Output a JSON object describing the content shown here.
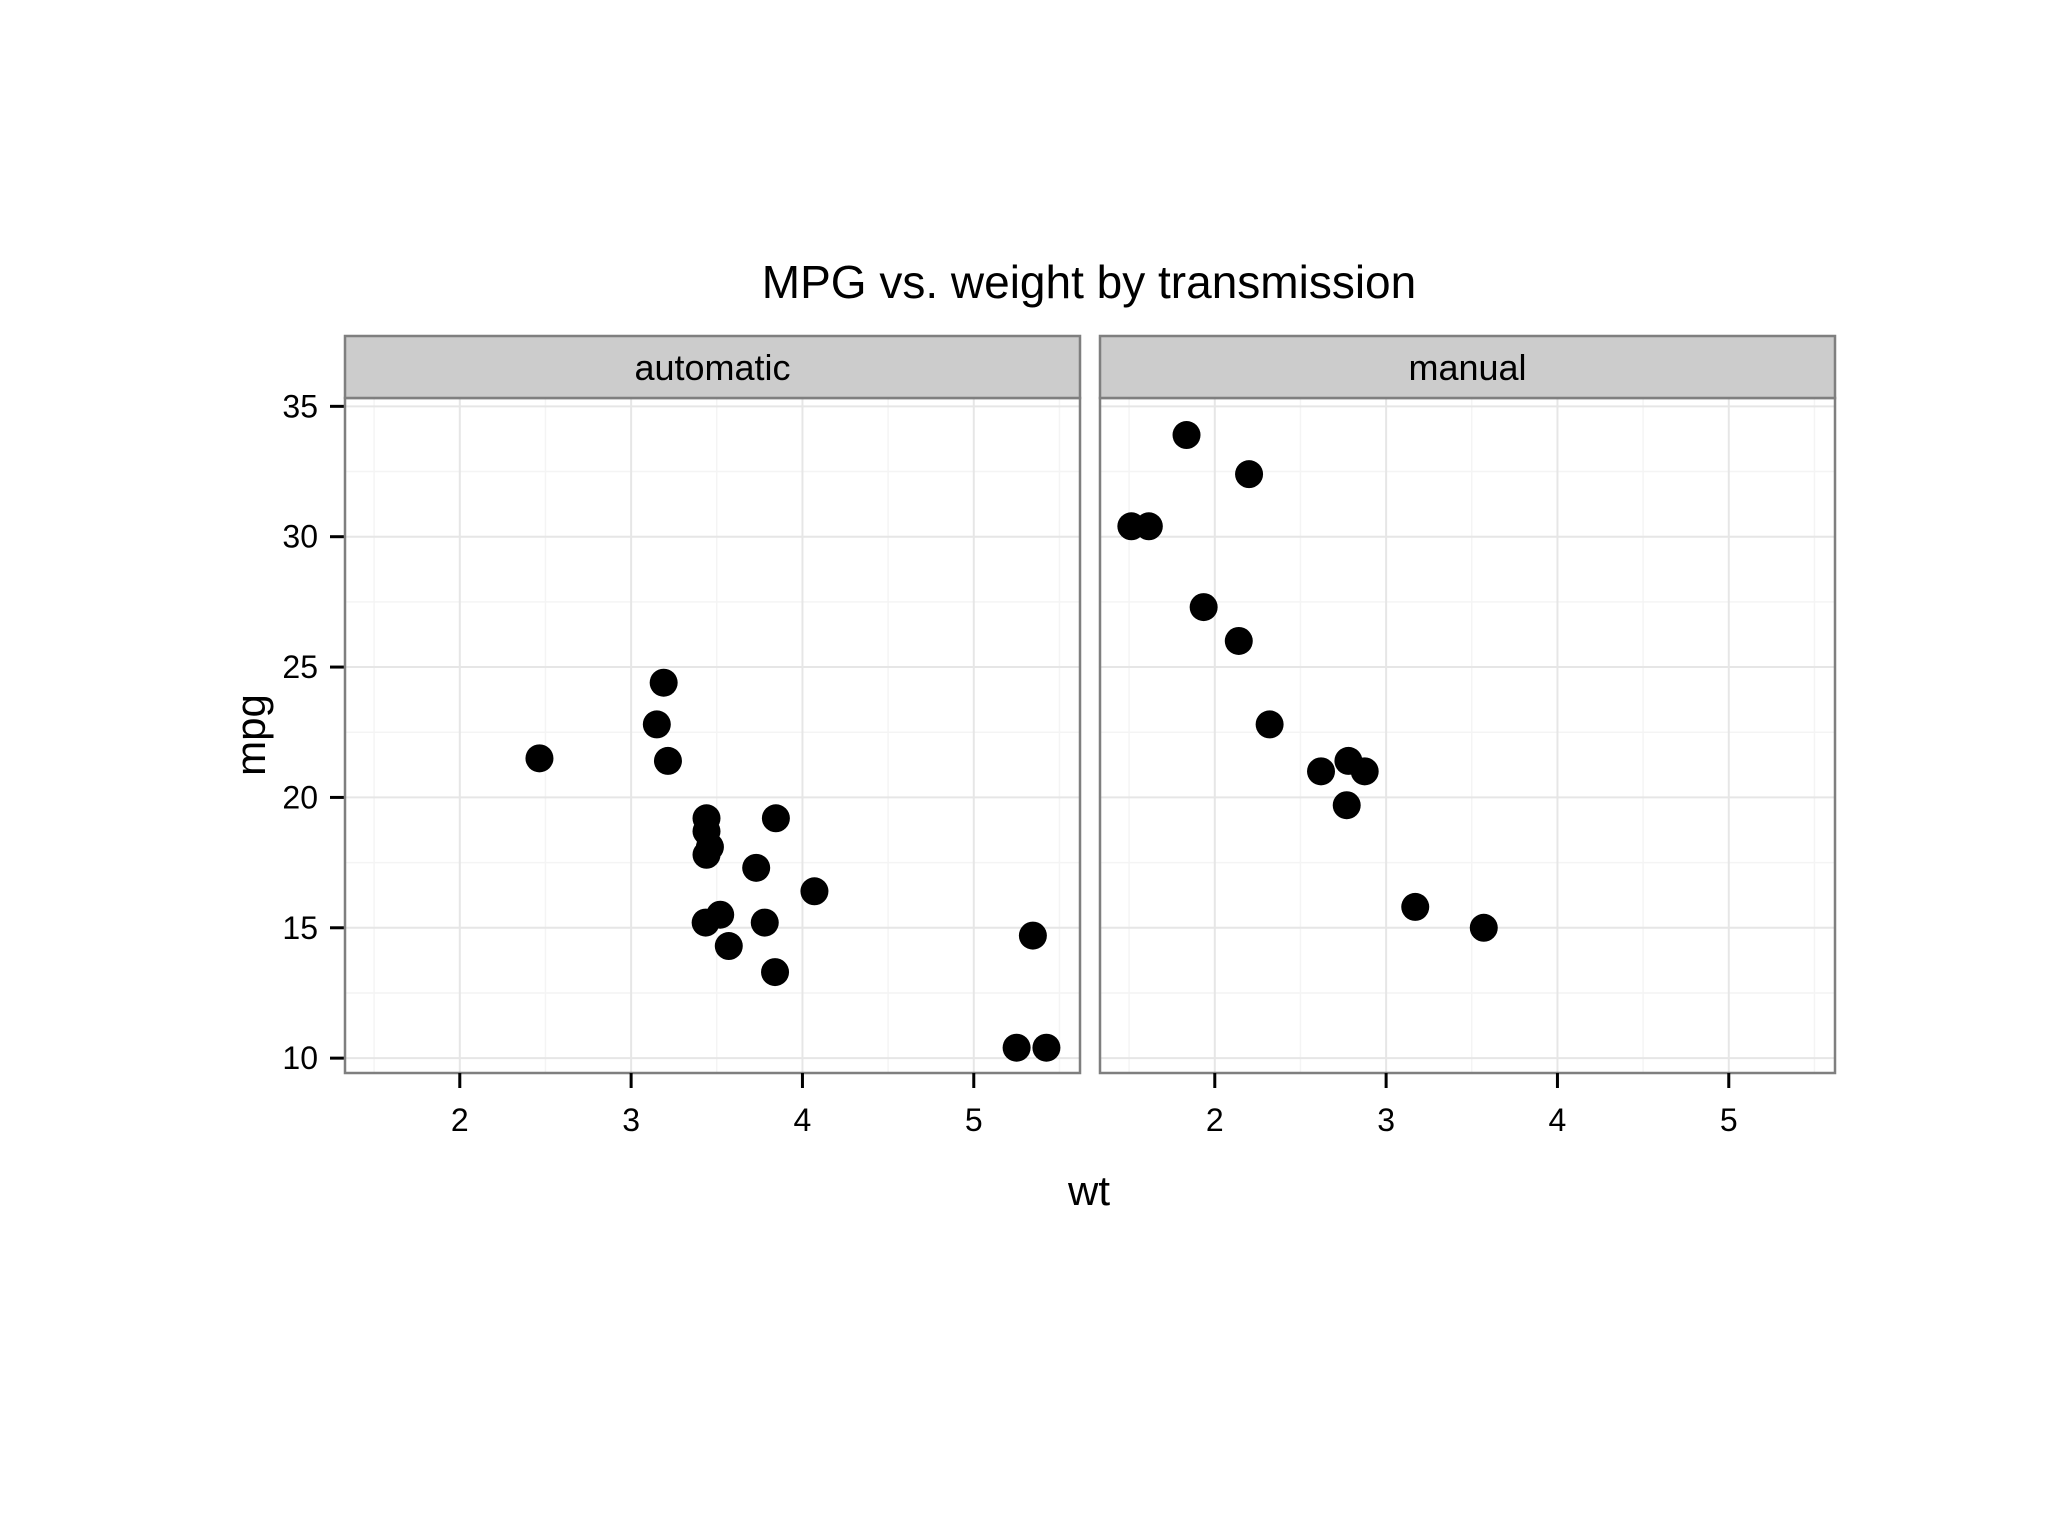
{
  "chart_data": {
    "type": "scatter",
    "title": "MPG vs. weight by transmission",
    "xlabel": "wt",
    "ylabel": "mpg",
    "xlim": [
      1.33,
      5.62
    ],
    "ylim": [
      9.43,
      35.32
    ],
    "xticks": [
      2,
      3,
      4,
      5
    ],
    "yticks": [
      10,
      15,
      20,
      25,
      30,
      35
    ],
    "grid": true,
    "legend": "none",
    "point_color": "#000000",
    "strip_color": "#cccccc",
    "panel_border_color": "#7f7f7f",
    "grid_color": "#e6e6e6",
    "panels": [
      {
        "name": "automatic",
        "points": [
          {
            "x": 2.465,
            "y": 21.5
          },
          {
            "x": 3.215,
            "y": 21.4
          },
          {
            "x": 3.44,
            "y": 18.7
          },
          {
            "x": 3.46,
            "y": 18.1
          },
          {
            "x": 3.57,
            "y": 14.3
          },
          {
            "x": 3.19,
            "y": 24.4
          },
          {
            "x": 3.15,
            "y": 22.8
          },
          {
            "x": 3.44,
            "y": 19.2
          },
          {
            "x": 3.44,
            "y": 17.8
          },
          {
            "x": 4.07,
            "y": 16.4
          },
          {
            "x": 3.73,
            "y": 17.3
          },
          {
            "x": 3.78,
            "y": 15.2
          },
          {
            "x": 5.25,
            "y": 10.4
          },
          {
            "x": 5.424,
            "y": 10.4
          },
          {
            "x": 5.345,
            "y": 14.7
          },
          {
            "x": 3.52,
            "y": 15.5
          },
          {
            "x": 3.435,
            "y": 15.2
          },
          {
            "x": 3.84,
            "y": 13.3
          },
          {
            "x": 3.845,
            "y": 19.2
          }
        ]
      },
      {
        "name": "manual",
        "points": [
          {
            "x": 2.62,
            "y": 21.0
          },
          {
            "x": 2.875,
            "y": 21.0
          },
          {
            "x": 2.32,
            "y": 22.8
          },
          {
            "x": 2.2,
            "y": 32.4
          },
          {
            "x": 1.615,
            "y": 30.4
          },
          {
            "x": 1.835,
            "y": 33.9
          },
          {
            "x": 1.935,
            "y": 27.3
          },
          {
            "x": 2.14,
            "y": 26.0
          },
          {
            "x": 1.513,
            "y": 30.4
          },
          {
            "x": 3.17,
            "y": 15.8
          },
          {
            "x": 2.77,
            "y": 19.7
          },
          {
            "x": 3.57,
            "y": 15.0
          },
          {
            "x": 2.78,
            "y": 21.4
          }
        ]
      }
    ]
  }
}
